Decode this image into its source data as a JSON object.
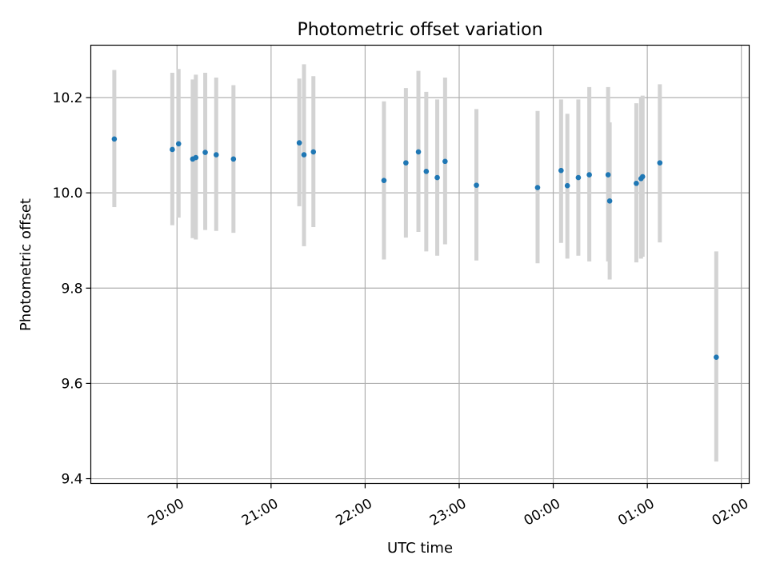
{
  "chart_data": {
    "type": "scatter",
    "title": "Photometric offset variation",
    "xlabel": "UTC time",
    "ylabel": "Photometric offset",
    "x_unit": "UTC time (hours after 00:00 of first night, wraps past midnight)",
    "xlim": [
      "19:05",
      "02:05"
    ],
    "ylim": [
      9.39,
      10.31
    ],
    "grid": true,
    "x_ticks": [
      {
        "label": "20:00",
        "time": "20:00"
      },
      {
        "label": "21:00",
        "time": "21:00"
      },
      {
        "label": "22:00",
        "time": "22:00"
      },
      {
        "label": "23:00",
        "time": "23:00"
      },
      {
        "label": "00:00",
        "time": "00:00"
      },
      {
        "label": "01:00",
        "time": "01:00"
      },
      {
        "label": "02:00",
        "time": "02:00"
      }
    ],
    "y_ticks": [
      {
        "label": "9.4",
        "value": 9.4
      },
      {
        "label": "9.6",
        "value": 9.6
      },
      {
        "label": "9.8",
        "value": 9.8
      },
      {
        "label": "10.0",
        "value": 10.0
      },
      {
        "label": "10.2",
        "value": 10.2
      }
    ],
    "marker_color": "#1f77b4",
    "errorbar_color": "#d3d3d3",
    "points": [
      {
        "time": "19:20",
        "y": 10.113,
        "low": 9.97,
        "high": 10.258
      },
      {
        "time": "19:57",
        "y": 10.091,
        "low": 9.932,
        "high": 10.252
      },
      {
        "time": "20:01",
        "y": 10.103,
        "low": 9.948,
        "high": 10.26
      },
      {
        "time": "20:10",
        "y": 10.071,
        "low": 9.905,
        "high": 10.238
      },
      {
        "time": "20:12",
        "y": 10.074,
        "low": 9.902,
        "high": 10.248
      },
      {
        "time": "20:18",
        "y": 10.085,
        "low": 9.922,
        "high": 10.252
      },
      {
        "time": "20:25",
        "y": 10.08,
        "low": 9.92,
        "high": 10.242
      },
      {
        "time": "20:36",
        "y": 10.071,
        "low": 9.916,
        "high": 10.226
      },
      {
        "time": "21:18",
        "y": 10.105,
        "low": 9.972,
        "high": 10.24
      },
      {
        "time": "21:21",
        "y": 10.08,
        "low": 9.888,
        "high": 10.27
      },
      {
        "time": "21:27",
        "y": 10.086,
        "low": 9.928,
        "high": 10.245
      },
      {
        "time": "22:12",
        "y": 10.026,
        "low": 9.86,
        "high": 10.192
      },
      {
        "time": "22:26",
        "y": 10.063,
        "low": 9.906,
        "high": 10.22
      },
      {
        "time": "22:34",
        "y": 10.086,
        "low": 9.918,
        "high": 10.256
      },
      {
        "time": "22:39",
        "y": 10.045,
        "low": 9.877,
        "high": 10.212
      },
      {
        "time": "22:46",
        "y": 10.032,
        "low": 9.868,
        "high": 10.196
      },
      {
        "time": "22:51",
        "y": 10.066,
        "low": 9.892,
        "high": 10.242
      },
      {
        "time": "23:11",
        "y": 10.016,
        "low": 9.858,
        "high": 10.176
      },
      {
        "time": "23:50",
        "y": 10.011,
        "low": 9.852,
        "high": 10.172
      },
      {
        "time": "00:05",
        "y": 10.047,
        "low": 9.895,
        "high": 10.196
      },
      {
        "time": "00:09",
        "y": 10.015,
        "low": 9.862,
        "high": 10.166
      },
      {
        "time": "00:16",
        "y": 10.032,
        "low": 9.868,
        "high": 10.196
      },
      {
        "time": "00:23",
        "y": 10.038,
        "low": 9.856,
        "high": 10.222
      },
      {
        "time": "00:35",
        "y": 10.038,
        "low": 9.856,
        "high": 10.222
      },
      {
        "time": "00:36",
        "y": 9.983,
        "low": 9.818,
        "high": 10.148
      },
      {
        "time": "00:53",
        "y": 10.02,
        "low": 9.854,
        "high": 10.188
      },
      {
        "time": "00:56",
        "y": 10.03,
        "low": 9.862,
        "high": 10.2
      },
      {
        "time": "00:57",
        "y": 10.034,
        "low": 9.866,
        "high": 10.204
      },
      {
        "time": "01:08",
        "y": 10.063,
        "low": 9.896,
        "high": 10.228
      },
      {
        "time": "01:44",
        "y": 9.655,
        "low": 9.436,
        "high": 9.877
      }
    ]
  }
}
